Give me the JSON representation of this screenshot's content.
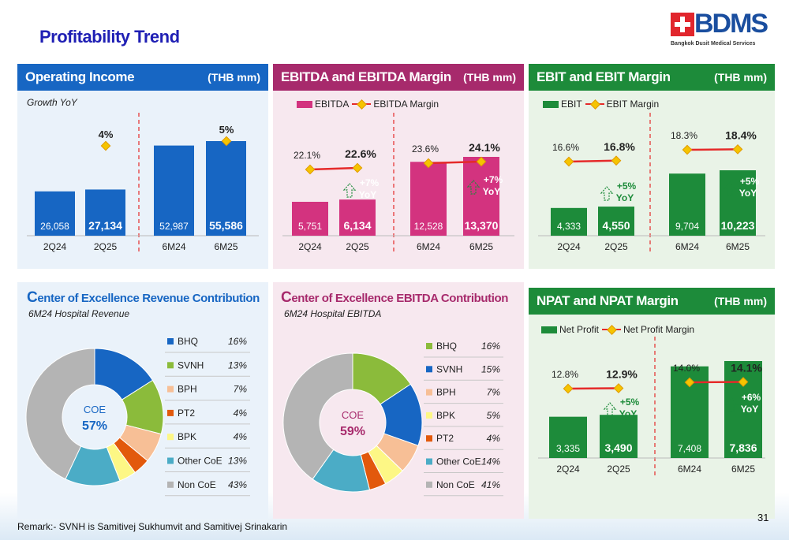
{
  "page": {
    "title": "Profitability Trend",
    "remark": "Remark:- SVNH is Samitivej Sukhumvit and Samitivej Srinakarin",
    "page_number": "31",
    "logo_text": "BDMS",
    "logo_sub": "Bangkok Dusit Medical Services"
  },
  "panels": {
    "operating_income": {
      "title": "Operating Income",
      "unit": "(THB mm)",
      "caption": "Growth YoY",
      "color": "#1766c3"
    },
    "ebitda": {
      "title": "EBITDA and EBITDA Margin",
      "unit": "(THB mm)",
      "legend_bar": "EBITDA",
      "legend_line": "EBITDA Margin",
      "color": "#d3337f"
    },
    "ebit": {
      "title": "EBIT and EBIT Margin",
      "unit": "(THB mm)",
      "legend_bar": "EBIT",
      "legend_line": "EBIT Margin",
      "color": "#1d8b3a"
    },
    "npat": {
      "title": "NPAT and NPAT Margin",
      "unit": "(THB mm)",
      "legend_bar": "Net Profit",
      "legend_line": "Net Profit Margin",
      "color": "#1d8b3a"
    },
    "coe_revenue": {
      "title_first": "C",
      "title_rest": "enter of Excellence Revenue Contribution",
      "caption": "6M24 Hospital Revenue",
      "color": "#1766c3"
    },
    "coe_ebitda": {
      "title_first": "C",
      "title_rest": "enter of Excellence EBITDA Contribution",
      "caption": "6M24 Hospital EBITDA",
      "color": "#a72a6c"
    }
  },
  "chart_data": [
    {
      "id": "operating_income",
      "type": "bar",
      "categories": [
        "2Q24",
        "2Q25",
        "6M24",
        "6M25"
      ],
      "values": [
        26058,
        27134,
        52987,
        55586
      ],
      "value_labels": [
        "26,058",
        "27,134",
        "52,987",
        "55,586"
      ],
      "growth_labels": [
        "4%",
        "5%"
      ],
      "ylabel": "(THB mm)"
    },
    {
      "id": "ebitda",
      "type": "bar",
      "categories": [
        "2Q24",
        "2Q25",
        "6M24",
        "6M25"
      ],
      "series": [
        {
          "name": "EBITDA",
          "values": [
            5751,
            6134,
            12528,
            13370
          ]
        },
        {
          "name": "EBITDA Margin",
          "values": [
            22.1,
            22.6,
            23.6,
            24.1
          ]
        }
      ],
      "value_labels": [
        "5,751",
        "6,134",
        "12,528",
        "13,370"
      ],
      "margin_labels": [
        "22.1%",
        "22.6%",
        "23.6%",
        "24.1%"
      ],
      "growth_labels": [
        "+7%",
        "YoY",
        "+7%",
        "YoY"
      ]
    },
    {
      "id": "ebit",
      "type": "bar",
      "categories": [
        "2Q24",
        "2Q25",
        "6M24",
        "6M25"
      ],
      "series": [
        {
          "name": "EBIT",
          "values": [
            4333,
            4550,
            9704,
            10223
          ]
        },
        {
          "name": "EBIT Margin",
          "values": [
            16.6,
            16.8,
            18.3,
            18.4
          ]
        }
      ],
      "value_labels": [
        "4,333",
        "4,550",
        "9,704",
        "10,223"
      ],
      "margin_labels": [
        "16.6%",
        "16.8%",
        "18.3%",
        "18.4%"
      ],
      "growth_labels": [
        "+5%",
        "YoY",
        "+5%",
        "YoY"
      ]
    },
    {
      "id": "npat",
      "type": "bar",
      "categories": [
        "2Q24",
        "2Q25",
        "6M24",
        "6M25"
      ],
      "series": [
        {
          "name": "Net Profit",
          "values": [
            3335,
            3490,
            7408,
            7836
          ]
        },
        {
          "name": "Net Profit Margin",
          "values": [
            12.8,
            12.9,
            14.0,
            14.1
          ]
        }
      ],
      "value_labels": [
        "3,335",
        "3,490",
        "7,408",
        "7,836"
      ],
      "margin_labels": [
        "12.8%",
        "12.9%",
        "14.0%",
        "14.1%"
      ],
      "growth_labels": [
        "+5%",
        "YoY",
        "+6%",
        "YoY"
      ]
    },
    {
      "id": "coe_revenue",
      "type": "pie",
      "center_labels": [
        "COE",
        "57%"
      ],
      "slices": [
        {
          "name": "BHQ",
          "value": 16,
          "label": "16%",
          "color": "#1766c3"
        },
        {
          "name": "SVNH",
          "value": 13,
          "label": "13%",
          "color": "#8bbb3b"
        },
        {
          "name": "BPH",
          "value": 7,
          "label": "7%",
          "color": "#f7bf96"
        },
        {
          "name": "PT2",
          "value": 4,
          "label": "4%",
          "color": "#e2590c"
        },
        {
          "name": "BPK",
          "value": 4,
          "label": "4%",
          "color": "#fdf785"
        },
        {
          "name": "Other CoE",
          "value": 13,
          "label": "13%",
          "color": "#4bacc6"
        },
        {
          "name": "Non CoE",
          "value": 43,
          "label": "43%",
          "color": "#b4b4b4"
        }
      ]
    },
    {
      "id": "coe_ebitda",
      "type": "pie",
      "center_labels": [
        "COE",
        "59%"
      ],
      "slices": [
        {
          "name": "BHQ",
          "value": 16,
          "label": "16%",
          "color": "#8bbb3b"
        },
        {
          "name": "SVNH",
          "value": 15,
          "label": "15%",
          "color": "#1766c3"
        },
        {
          "name": "BPH",
          "value": 7,
          "label": "7%",
          "color": "#f7bf96"
        },
        {
          "name": "BPK",
          "value": 5,
          "label": "5%",
          "color": "#fdf785"
        },
        {
          "name": "PT2",
          "value": 4,
          "label": "4%",
          "color": "#e2590c"
        },
        {
          "name": "Other CoE",
          "value": 14,
          "label": "14%",
          "color": "#4bacc6"
        },
        {
          "name": "Non CoE",
          "value": 41,
          "label": "41%",
          "color": "#b4b4b4"
        }
      ]
    }
  ]
}
